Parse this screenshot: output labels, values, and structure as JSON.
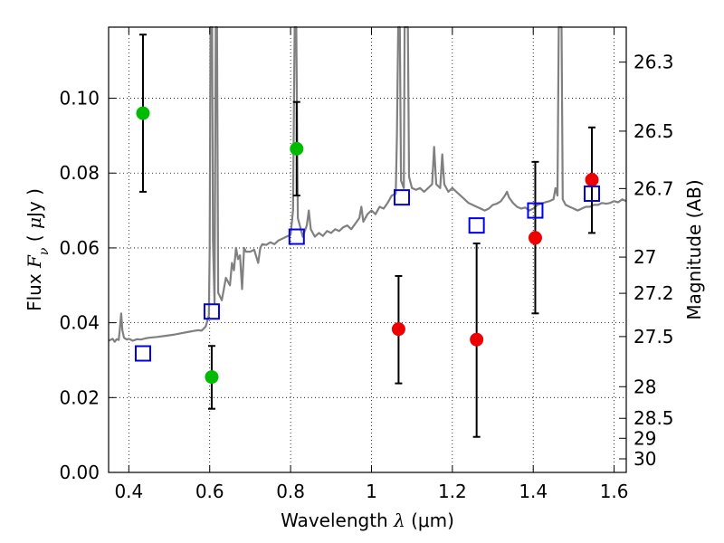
{
  "chart_data": {
    "type": "scatter",
    "title": "",
    "xlabel": "Wavelength  λ (μm)",
    "xlabel_parts": {
      "text": "Wavelength  ",
      "symbol": "λ",
      "unit": " (μm)"
    },
    "ylabel": "Flux  Fν  ( μJy )",
    "ylabel_parts": {
      "text": "Flux  ",
      "symbol": "F",
      "sub": "ν",
      "unit_open": "  ( ",
      "unit_mu": "μ",
      "unit_rest": "Jy )"
    },
    "y2label": "Magnitude (AB)",
    "xlim": [
      0.35,
      1.63
    ],
    "ylim": [
      0.0,
      0.119
    ],
    "grid": true,
    "x_ticks": [
      {
        "value": 0.4,
        "label": "0.4"
      },
      {
        "value": 0.6,
        "label": "0.6"
      },
      {
        "value": 0.8,
        "label": "0.8"
      },
      {
        "value": 1.0,
        "label": "1"
      },
      {
        "value": 1.2,
        "label": "1.2"
      },
      {
        "value": 1.4,
        "label": "1.4"
      },
      {
        "value": 1.6,
        "label": "1.6"
      }
    ],
    "y_ticks": [
      {
        "value": 0.0,
        "label": "0.00"
      },
      {
        "value": 0.02,
        "label": "0.02"
      },
      {
        "value": 0.04,
        "label": "0.04"
      },
      {
        "value": 0.06,
        "label": "0.06"
      },
      {
        "value": 0.08,
        "label": "0.08"
      },
      {
        "value": 0.1,
        "label": "0.10"
      }
    ],
    "y2_ticks": [
      {
        "mag": 26.3,
        "label": "26.3"
      },
      {
        "mag": 26.5,
        "label": "26.5"
      },
      {
        "mag": 26.7,
        "label": "26.7"
      },
      {
        "mag": 27.0,
        "label": "27"
      },
      {
        "mag": 27.2,
        "label": "27.2"
      },
      {
        "mag": 27.5,
        "label": "27.5"
      },
      {
        "mag": 28.0,
        "label": "28"
      },
      {
        "mag": 28.5,
        "label": "28.5"
      },
      {
        "mag": 29.0,
        "label": "29"
      },
      {
        "mag": 30.0,
        "label": "30"
      }
    ],
    "series": [
      {
        "kind": "line",
        "color": "#808080",
        "points": [
          [
            0.35,
            0.0352
          ],
          [
            0.36,
            0.0357
          ],
          [
            0.365,
            0.0349
          ],
          [
            0.37,
            0.0356
          ],
          [
            0.375,
            0.0354
          ],
          [
            0.378,
            0.0385
          ],
          [
            0.381,
            0.0425
          ],
          [
            0.384,
            0.038
          ],
          [
            0.388,
            0.036
          ],
          [
            0.395,
            0.0355
          ],
          [
            0.4,
            0.0357
          ],
          [
            0.41,
            0.0352
          ],
          [
            0.42,
            0.0356
          ],
          [
            0.43,
            0.0355
          ],
          [
            0.44,
            0.0358
          ],
          [
            0.45,
            0.036
          ],
          [
            0.47,
            0.0362
          ],
          [
            0.49,
            0.0365
          ],
          [
            0.51,
            0.0368
          ],
          [
            0.53,
            0.0372
          ],
          [
            0.55,
            0.0376
          ],
          [
            0.57,
            0.038
          ],
          [
            0.58,
            0.0379
          ],
          [
            0.59,
            0.039
          ],
          [
            0.598,
            0.042
          ],
          [
            0.6,
            0.06
          ],
          [
            0.602,
            0.119
          ],
          [
            0.606,
            0.119
          ],
          [
            0.608,
            0.062
          ],
          [
            0.612,
            0.045
          ],
          [
            0.615,
            0.119
          ],
          [
            0.618,
            0.119
          ],
          [
            0.621,
            0.048
          ],
          [
            0.63,
            0.046
          ],
          [
            0.64,
            0.052
          ],
          [
            0.65,
            0.05
          ],
          [
            0.655,
            0.056
          ],
          [
            0.66,
            0.054
          ],
          [
            0.665,
            0.06
          ],
          [
            0.67,
            0.057
          ],
          [
            0.675,
            0.058
          ],
          [
            0.68,
            0.049
          ],
          [
            0.685,
            0.06
          ],
          [
            0.69,
            0.059
          ],
          [
            0.7,
            0.059
          ],
          [
            0.71,
            0.0595
          ],
          [
            0.72,
            0.056
          ],
          [
            0.725,
            0.06
          ],
          [
            0.73,
            0.061
          ],
          [
            0.74,
            0.0608
          ],
          [
            0.75,
            0.0615
          ],
          [
            0.76,
            0.061
          ],
          [
            0.77,
            0.062
          ],
          [
            0.78,
            0.0625
          ],
          [
            0.79,
            0.063
          ],
          [
            0.8,
            0.0635
          ],
          [
            0.806,
            0.07
          ],
          [
            0.81,
            0.119
          ],
          [
            0.814,
            0.119
          ],
          [
            0.818,
            0.068
          ],
          [
            0.83,
            0.063
          ],
          [
            0.84,
            0.066
          ],
          [
            0.845,
            0.07
          ],
          [
            0.85,
            0.065
          ],
          [
            0.86,
            0.063
          ],
          [
            0.87,
            0.064
          ],
          [
            0.88,
            0.0632
          ],
          [
            0.89,
            0.0645
          ],
          [
            0.9,
            0.064
          ],
          [
            0.91,
            0.065
          ],
          [
            0.92,
            0.0645
          ],
          [
            0.93,
            0.0655
          ],
          [
            0.94,
            0.066
          ],
          [
            0.95,
            0.065
          ],
          [
            0.96,
            0.0665
          ],
          [
            0.97,
            0.068
          ],
          [
            0.975,
            0.071
          ],
          [
            0.98,
            0.067
          ],
          [
            0.99,
            0.069
          ],
          [
            1.0,
            0.07
          ],
          [
            1.01,
            0.069
          ],
          [
            1.02,
            0.071
          ],
          [
            1.03,
            0.0705
          ],
          [
            1.04,
            0.072
          ],
          [
            1.05,
            0.074
          ],
          [
            1.06,
            0.0745
          ],
          [
            1.063,
            0.09
          ],
          [
            1.066,
            0.119
          ],
          [
            1.07,
            0.119
          ],
          [
            1.073,
            0.078
          ],
          [
            1.08,
            0.076
          ],
          [
            1.082,
            0.119
          ],
          [
            1.085,
            0.119
          ],
          [
            1.09,
            0.119
          ],
          [
            1.093,
            0.079
          ],
          [
            1.1,
            0.076
          ],
          [
            1.11,
            0.0755
          ],
          [
            1.12,
            0.076
          ],
          [
            1.13,
            0.075
          ],
          [
            1.14,
            0.076
          ],
          [
            1.15,
            0.077
          ],
          [
            1.155,
            0.087
          ],
          [
            1.16,
            0.077
          ],
          [
            1.17,
            0.076
          ],
          [
            1.175,
            0.085
          ],
          [
            1.18,
            0.077
          ],
          [
            1.19,
            0.075
          ],
          [
            1.2,
            0.076
          ],
          [
            1.21,
            0.075
          ],
          [
            1.22,
            0.074
          ],
          [
            1.23,
            0.073
          ],
          [
            1.24,
            0.072
          ],
          [
            1.25,
            0.0715
          ],
          [
            1.26,
            0.071
          ],
          [
            1.27,
            0.0705
          ],
          [
            1.28,
            0.07
          ],
          [
            1.29,
            0.0705
          ],
          [
            1.3,
            0.0715
          ],
          [
            1.31,
            0.0718
          ],
          [
            1.32,
            0.0725
          ],
          [
            1.33,
            0.074
          ],
          [
            1.335,
            0.075
          ],
          [
            1.34,
            0.0735
          ],
          [
            1.35,
            0.072
          ],
          [
            1.36,
            0.071
          ],
          [
            1.37,
            0.0705
          ],
          [
            1.38,
            0.0708
          ],
          [
            1.39,
            0.07
          ],
          [
            1.4,
            0.0705
          ],
          [
            1.41,
            0.0715
          ],
          [
            1.42,
            0.0718
          ],
          [
            1.43,
            0.0722
          ],
          [
            1.44,
            0.0725
          ],
          [
            1.45,
            0.073
          ],
          [
            1.455,
            0.076
          ],
          [
            1.46,
            0.074
          ],
          [
            1.463,
            0.119
          ],
          [
            1.47,
            0.119
          ],
          [
            1.473,
            0.073
          ],
          [
            1.48,
            0.0715
          ],
          [
            1.49,
            0.071
          ],
          [
            1.5,
            0.0705
          ],
          [
            1.51,
            0.07
          ],
          [
            1.52,
            0.0705
          ],
          [
            1.53,
            0.071
          ],
          [
            1.54,
            0.071
          ],
          [
            1.55,
            0.0715
          ],
          [
            1.56,
            0.0715
          ],
          [
            1.57,
            0.072
          ],
          [
            1.58,
            0.0718
          ],
          [
            1.59,
            0.072
          ],
          [
            1.6,
            0.0725
          ],
          [
            1.61,
            0.0722
          ],
          [
            1.62,
            0.073
          ],
          [
            1.63,
            0.0725
          ]
        ]
      },
      {
        "kind": "points-with-errorbars",
        "marker": "circle",
        "color": "#00bb00",
        "points": [
          {
            "x": 0.435,
            "y": 0.096,
            "lo": 0.075,
            "hi": 0.117
          },
          {
            "x": 0.605,
            "y": 0.0255,
            "lo": 0.017,
            "hi": 0.0338
          },
          {
            "x": 0.815,
            "y": 0.0865,
            "lo": 0.074,
            "hi": 0.099
          }
        ]
      },
      {
        "kind": "points-with-errorbars",
        "marker": "circle",
        "color": "#ee0000",
        "points": [
          {
            "x": 1.067,
            "y": 0.0383,
            "lo": 0.0238,
            "hi": 0.0525
          },
          {
            "x": 1.26,
            "y": 0.0355,
            "lo": 0.0095,
            "hi": 0.0612
          },
          {
            "x": 1.405,
            "y": 0.0627,
            "lo": 0.0425,
            "hi": 0.083
          },
          {
            "x": 1.545,
            "y": 0.0782,
            "lo": 0.064,
            "hi": 0.0922
          }
        ]
      },
      {
        "kind": "points",
        "marker": "open-square",
        "color": "#0000ee",
        "points": [
          {
            "x": 0.435,
            "y": 0.0318
          },
          {
            "x": 0.605,
            "y": 0.043
          },
          {
            "x": 0.815,
            "y": 0.063
          },
          {
            "x": 1.075,
            "y": 0.0735
          },
          {
            "x": 1.26,
            "y": 0.066
          },
          {
            "x": 1.405,
            "y": 0.07
          },
          {
            "x": 1.545,
            "y": 0.0745
          }
        ]
      }
    ]
  }
}
